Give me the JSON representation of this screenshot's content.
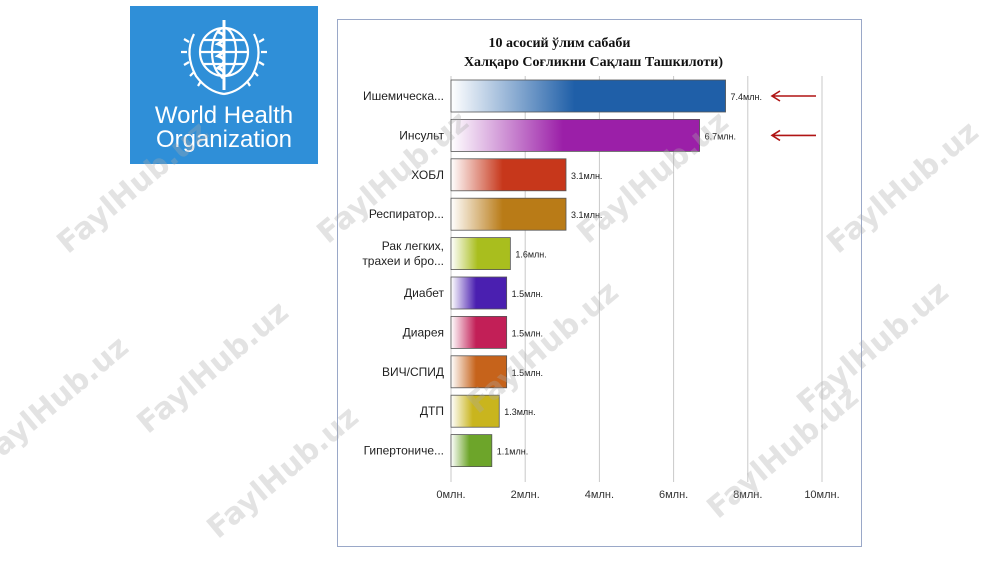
{
  "logo": {
    "line1": "World Health",
    "line2": "Organization"
  },
  "watermark": "FaylHub.uz",
  "chart_data": {
    "type": "bar",
    "orientation": "horizontal",
    "title_line1": "10 асосий ўлим сабаби",
    "title_line2": "Халқаро Соғликни Сақлаш Ташкилоти)",
    "categories": [
      [
        "Ишемическа..."
      ],
      [
        "Инсульт"
      ],
      [
        "ХОБЛ"
      ],
      [
        "Респиратор..."
      ],
      [
        "Рак легких,",
        "трахеи и бро..."
      ],
      [
        "Диабет"
      ],
      [
        "Диарея"
      ],
      [
        "ВИЧ/СПИД"
      ],
      [
        "ДТП"
      ],
      [
        "Гипертониче..."
      ]
    ],
    "values": [
      7.4,
      6.7,
      3.1,
      3.1,
      1.6,
      1.5,
      1.5,
      1.5,
      1.3,
      1.1
    ],
    "value_labels": [
      "7.4млн.",
      "6.7млн.",
      "3.1млн.",
      "3.1млн.",
      "1.6млн.",
      "1.5млн.",
      "1.5млн.",
      "1.5млн.",
      "1.3млн.",
      "1.1млн."
    ],
    "colors": [
      "#1f5fa8",
      "#9b1fa8",
      "#c7371b",
      "#b97b17",
      "#a9be1e",
      "#4a1fb0",
      "#c21f57",
      "#c6631b",
      "#c9b51e",
      "#6da52a"
    ],
    "x_ticks": [
      0,
      2,
      4,
      6,
      8,
      10
    ],
    "x_tick_labels": [
      "0млн.",
      "2млн.",
      "4млн.",
      "6млн.",
      "8млн.",
      "10млн."
    ],
    "xlim": [
      0,
      10
    ],
    "grid": true,
    "highlighted": [
      0,
      1
    ],
    "highlight_color": "#b01414"
  }
}
